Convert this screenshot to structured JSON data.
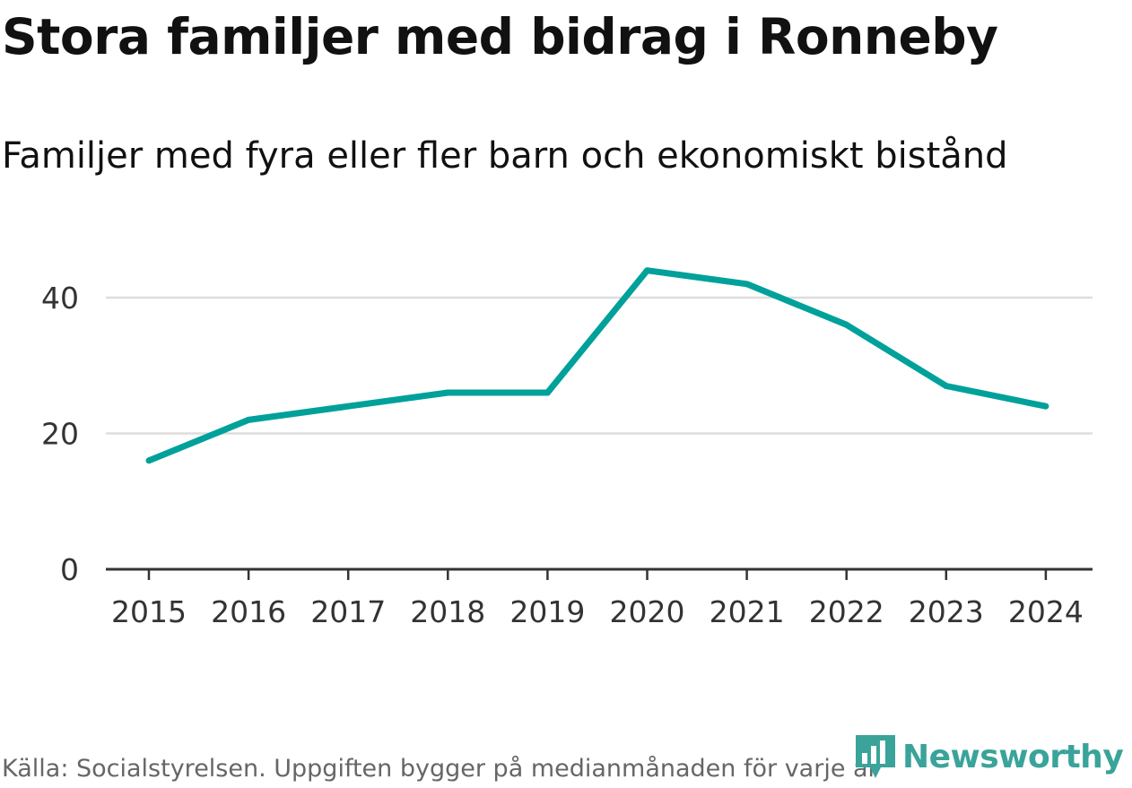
{
  "header": {
    "title": "Stora familjer med bidrag i Ronneby",
    "subtitle": "Familjer med fyra eller fler barn och ekonomiskt bistånd"
  },
  "footer": {
    "source": "Källa: Socialstyrelsen. Uppgiften bygger på medianmånaden för varje år",
    "logo_text": "Newsworthy",
    "logo_icon": "bar-chart-speech-bubble-icon"
  },
  "colors": {
    "line": "#00a19a",
    "grid": "#dddddd",
    "axis": "#333333",
    "tick_text": "#333333",
    "logo": "#3aa39a"
  },
  "chart_data": {
    "type": "line",
    "title": "Stora familjer med bidrag i Ronneby",
    "subtitle": "Familjer med fyra eller fler barn och ekonomiskt bistånd",
    "xlabel": "",
    "ylabel": "",
    "categories": [
      "2015",
      "2016",
      "2017",
      "2018",
      "2019",
      "2020",
      "2021",
      "2022",
      "2023",
      "2024"
    ],
    "series": [
      {
        "name": "Familjer med fyra eller fler barn och ekonomiskt bistånd",
        "values": [
          16,
          22,
          24,
          26,
          26,
          44,
          42,
          36,
          27,
          24
        ]
      }
    ],
    "ylim": [
      0,
      48
    ],
    "yticks": [
      0,
      20,
      40
    ],
    "ytick_labels": [
      "0",
      "20",
      "40"
    ],
    "grid": true,
    "legend": "none"
  }
}
